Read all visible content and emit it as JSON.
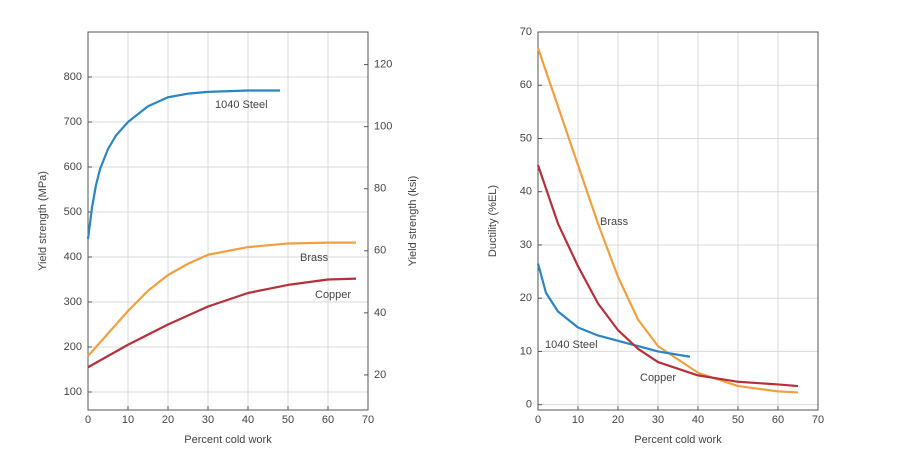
{
  "chart_data": [
    {
      "type": "line",
      "xlabel": "Percent cold work",
      "ylabel": "Yield strength (MPa)",
      "y2label": "Yield strength (ksi)",
      "xlim": [
        0,
        70
      ],
      "xticks": [
        0,
        10,
        20,
        30,
        40,
        50,
        60,
        70
      ],
      "ylim": [
        60,
        900
      ],
      "yticks": [
        100,
        200,
        300,
        400,
        500,
        600,
        700,
        800
      ],
      "y2lim": [
        8.7,
        130.5
      ],
      "y2ticks": [
        20,
        40,
        60,
        80,
        100,
        120
      ],
      "grid": true,
      "series": [
        {
          "name": "1040 Steel",
          "color": "#2a85c0",
          "x": [
            0,
            1,
            2,
            3,
            5,
            7,
            10,
            15,
            20,
            25,
            30,
            40,
            48
          ],
          "values": [
            440,
            510,
            560,
            595,
            640,
            670,
            700,
            735,
            755,
            763,
            767,
            770,
            770
          ]
        },
        {
          "name": "Brass",
          "color": "#f0a040",
          "x": [
            0,
            5,
            10,
            15,
            20,
            25,
            30,
            40,
            50,
            60,
            67
          ],
          "values": [
            180,
            230,
            280,
            325,
            360,
            385,
            405,
            422,
            430,
            432,
            432
          ]
        },
        {
          "name": "Copper",
          "color": "#b5303a",
          "x": [
            0,
            10,
            20,
            30,
            40,
            50,
            60,
            67
          ],
          "values": [
            155,
            205,
            250,
            290,
            320,
            338,
            350,
            352
          ]
        }
      ]
    },
    {
      "type": "line",
      "xlabel": "Percent cold work",
      "ylabel": "Ductility (%EL)",
      "xlim": [
        0,
        70
      ],
      "xticks": [
        0,
        10,
        20,
        30,
        40,
        50,
        60,
        70
      ],
      "ylim": [
        -1,
        70
      ],
      "yticks": [
        0,
        10,
        20,
        30,
        40,
        50,
        60,
        70
      ],
      "grid": true,
      "series": [
        {
          "name": "Brass",
          "color": "#f0a040",
          "x": [
            0,
            5,
            10,
            15,
            20,
            25,
            30,
            40,
            50,
            60,
            65
          ],
          "values": [
            67,
            56,
            45,
            34,
            24,
            16,
            11,
            6,
            3.5,
            2.5,
            2.3
          ]
        },
        {
          "name": "1040 Steel",
          "color": "#2a85c0",
          "x": [
            0,
            2,
            5,
            10,
            15,
            20,
            25,
            30,
            38
          ],
          "values": [
            26.5,
            21,
            17.5,
            14.5,
            13,
            12,
            11,
            10,
            9
          ]
        },
        {
          "name": "Copper",
          "color": "#b5303a",
          "x": [
            0,
            5,
            10,
            15,
            20,
            25,
            30,
            40,
            50,
            60,
            65
          ],
          "values": [
            45,
            34,
            26,
            19,
            14,
            10.5,
            8,
            5.5,
            4.3,
            3.8,
            3.5
          ]
        }
      ]
    }
  ]
}
